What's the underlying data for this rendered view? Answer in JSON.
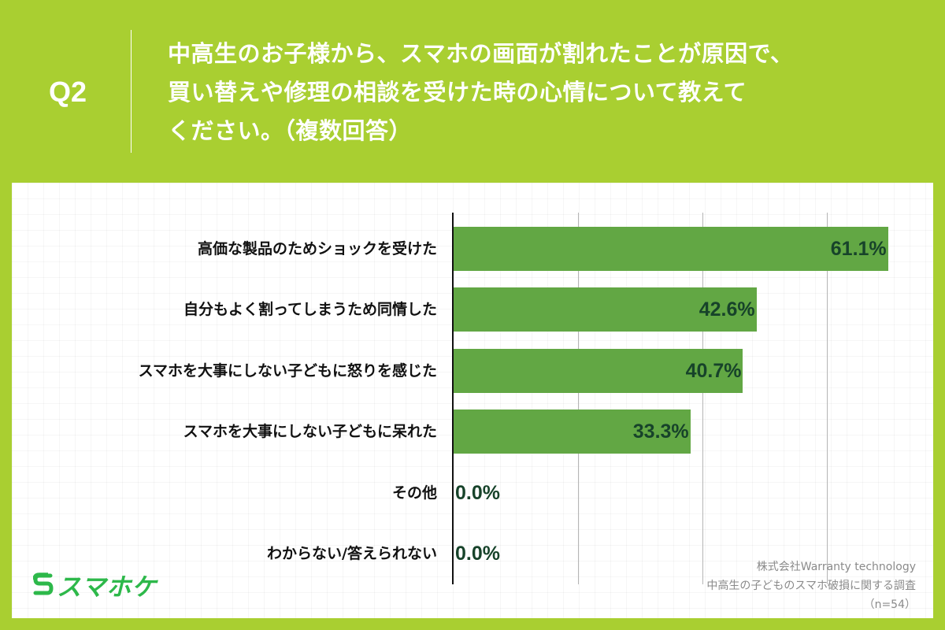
{
  "header": {
    "question_number": "Q2",
    "question_lines": [
      "中高生のお子様から、スマホの画面が割れたことが原因で、",
      "買い替えや修理の相談を受けた時の心情について教えて",
      "ください。（複数回答）"
    ]
  },
  "colors": {
    "background": "#a9cf31",
    "bar": "#62a744",
    "value_label": "#17432a",
    "logo": "#2db84a",
    "source_text": "#8a8a8a"
  },
  "brand": {
    "logo_text": "スマホケ",
    "logo_icon": "s-logo-icon"
  },
  "source": {
    "company": "株式会社Warranty technology",
    "survey": "中高生の子どものスマホ破損に関する調査",
    "sample": "（n=54）"
  },
  "chart_data": {
    "type": "bar",
    "orientation": "horizontal",
    "title": "中高生のお子様から、スマホの画面が割れたことが原因で、買い替えや修理の相談を受けた時の心情について教えてください。（複数回答）",
    "categories": [
      "高価な製品のためショックを受けた",
      "自分もよく割ってしまうため同情した",
      "スマホを大事にしない子どもに怒りを感じた",
      "スマホを大事にしない子どもに呆れた",
      "その他",
      "わからない/答えられない"
    ],
    "values": [
      61.1,
      42.6,
      40.7,
      33.3,
      0.0,
      0.0
    ],
    "value_labels": [
      "61.1%",
      "42.6%",
      "40.7%",
      "33.3%",
      "0.0%",
      "0.0%"
    ],
    "xlabel": "",
    "ylabel": "",
    "xlim": [
      0,
      70
    ],
    "grid": true,
    "gridlines_at": [
      17.5,
      35,
      52.5
    ],
    "legend": null,
    "unit": "%",
    "n": 54
  }
}
